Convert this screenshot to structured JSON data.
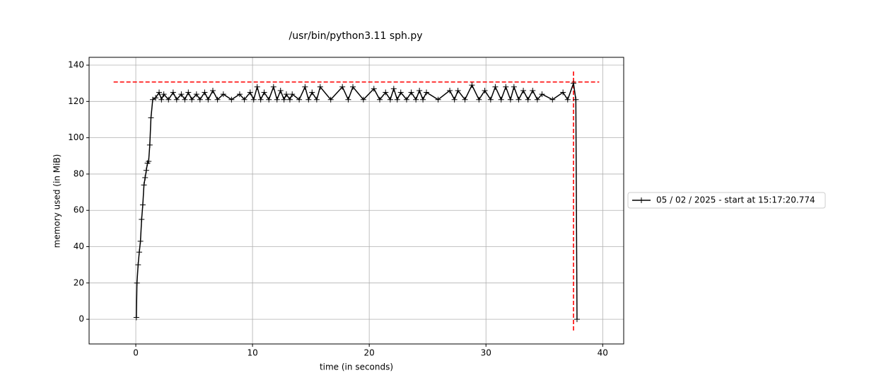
{
  "chart_data": {
    "type": "line",
    "title": "/usr/bin/python3.11 sph.py",
    "xlabel": "time (in seconds)",
    "ylabel": "memory used (in MiB)",
    "x": [
      0.05,
      0.1,
      0.2,
      0.3,
      0.4,
      0.5,
      0.6,
      0.7,
      0.8,
      0.9,
      1.0,
      1.1,
      1.2,
      1.3,
      1.45,
      1.7,
      2.0,
      2.2,
      2.4,
      2.8,
      3.2,
      3.5,
      3.9,
      4.2,
      4.5,
      4.8,
      5.2,
      5.5,
      5.9,
      6.2,
      6.6,
      7.0,
      7.5,
      8.2,
      8.9,
      9.3,
      9.8,
      10.1,
      10.4,
      10.7,
      11.0,
      11.4,
      11.8,
      12.1,
      12.4,
      12.7,
      12.9,
      13.2,
      13.4,
      14.0,
      14.5,
      14.8,
      15.1,
      15.5,
      15.8,
      16.7,
      17.7,
      18.2,
      18.6,
      19.5,
      20.4,
      20.9,
      21.4,
      21.8,
      22.1,
      22.4,
      22.7,
      23.2,
      23.6,
      24.0,
      24.3,
      24.6,
      24.9,
      25.9,
      26.9,
      27.3,
      27.6,
      28.2,
      28.8,
      29.4,
      29.9,
      30.4,
      30.8,
      31.3,
      31.7,
      32.1,
      32.4,
      32.8,
      33.2,
      33.6,
      34.0,
      34.4,
      34.8,
      35.7,
      36.6,
      37.0,
      37.5,
      37.7,
      37.8
    ],
    "series": [
      {
        "name": "05 / 02 / 2025 - start at 15:17:20.774",
        "color": "#000000",
        "values": [
          1,
          20,
          30,
          37,
          43,
          55,
          63,
          74,
          78,
          82,
          86,
          87,
          96,
          111,
          121,
          122,
          125,
          121,
          124,
          121,
          125,
          121,
          124,
          121,
          125,
          121,
          124,
          121,
          125,
          121,
          126,
          121,
          124,
          121,
          124,
          121,
          125,
          121,
          128,
          121,
          125,
          121,
          128,
          121,
          126,
          121,
          124,
          121,
          124,
          121,
          128,
          121,
          125,
          121,
          128,
          121,
          128,
          121,
          128,
          121,
          127,
          121,
          125,
          121,
          127,
          121,
          125,
          121,
          125,
          121,
          126,
          121,
          125,
          121,
          126,
          121,
          126,
          121,
          129,
          121,
          126,
          121,
          128,
          121,
          128,
          121,
          128,
          121,
          126,
          121,
          126,
          121,
          124,
          121,
          125,
          121,
          130,
          121,
          0
        ]
      }
    ],
    "max_lines": {
      "color": "#ff0000",
      "y": 130.7,
      "x": 37.5,
      "x_extent": [
        -1.9,
        39.7
      ],
      "y_extent": [
        -6.2,
        137.3
      ]
    },
    "xlim": [
      -4.0,
      41.8
    ],
    "ylim": [
      -13.6,
      144.3
    ],
    "xticks": [
      0,
      10,
      20,
      30,
      40
    ],
    "yticks": [
      0,
      20,
      40,
      60,
      80,
      100,
      120,
      140
    ],
    "grid": true,
    "legend": "right"
  }
}
